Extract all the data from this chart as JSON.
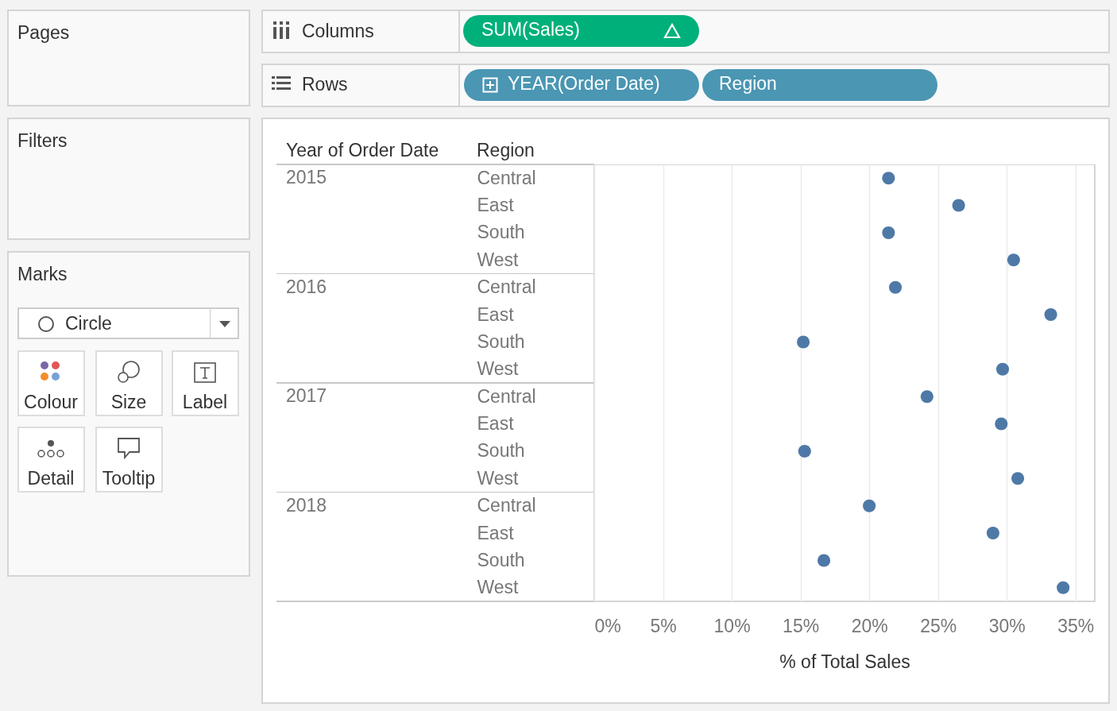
{
  "chart_data": [
    {
      "type": "other",
      "annotations": [
        "Pages",
        "Filters",
        "Marks",
        "Circle",
        "Colour",
        "Size",
        "Label",
        "Detail",
        "Tooltip",
        "Columns",
        "SUM(Sales)",
        "Rows",
        "YEAR(Order Date)",
        "Region"
      ]
    },
    {
      "type": "scatter",
      "orientation": "horizontal",
      "xlabel": "% of Total Sales",
      "annotations": [
        "Year of Order Date",
        "Region",
        "2015",
        "2016",
        "2017",
        "2018"
      ],
      "categories": [
        "Central",
        "East",
        "South",
        "West",
        "Central",
        "East",
        "South",
        "West",
        "Central",
        "East",
        "South",
        "West",
        "Central",
        "East",
        "South",
        "West"
      ],
      "values": [
        21.4,
        26.5,
        21.4,
        30.5,
        21.9,
        33.2,
        15.2,
        29.7,
        24.2,
        29.6,
        15.3,
        30.8,
        20.0,
        29.0,
        16.7,
        34.1
      ],
      "color": "#4e79a7",
      "marker": "circle",
      "xlim": [
        0,
        36.4
      ],
      "xticks": [
        {
          "value": 0,
          "label": "0%"
        },
        {
          "value": 5,
          "label": "5%"
        },
        {
          "value": 10,
          "label": "10%"
        },
        {
          "value": 15,
          "label": "15%"
        },
        {
          "value": 20,
          "label": "20%"
        },
        {
          "value": 25,
          "label": "25%"
        },
        {
          "value": 30,
          "label": "30%"
        },
        {
          "value": 35,
          "label": "35%"
        }
      ],
      "grid": "x"
    }
  ]
}
